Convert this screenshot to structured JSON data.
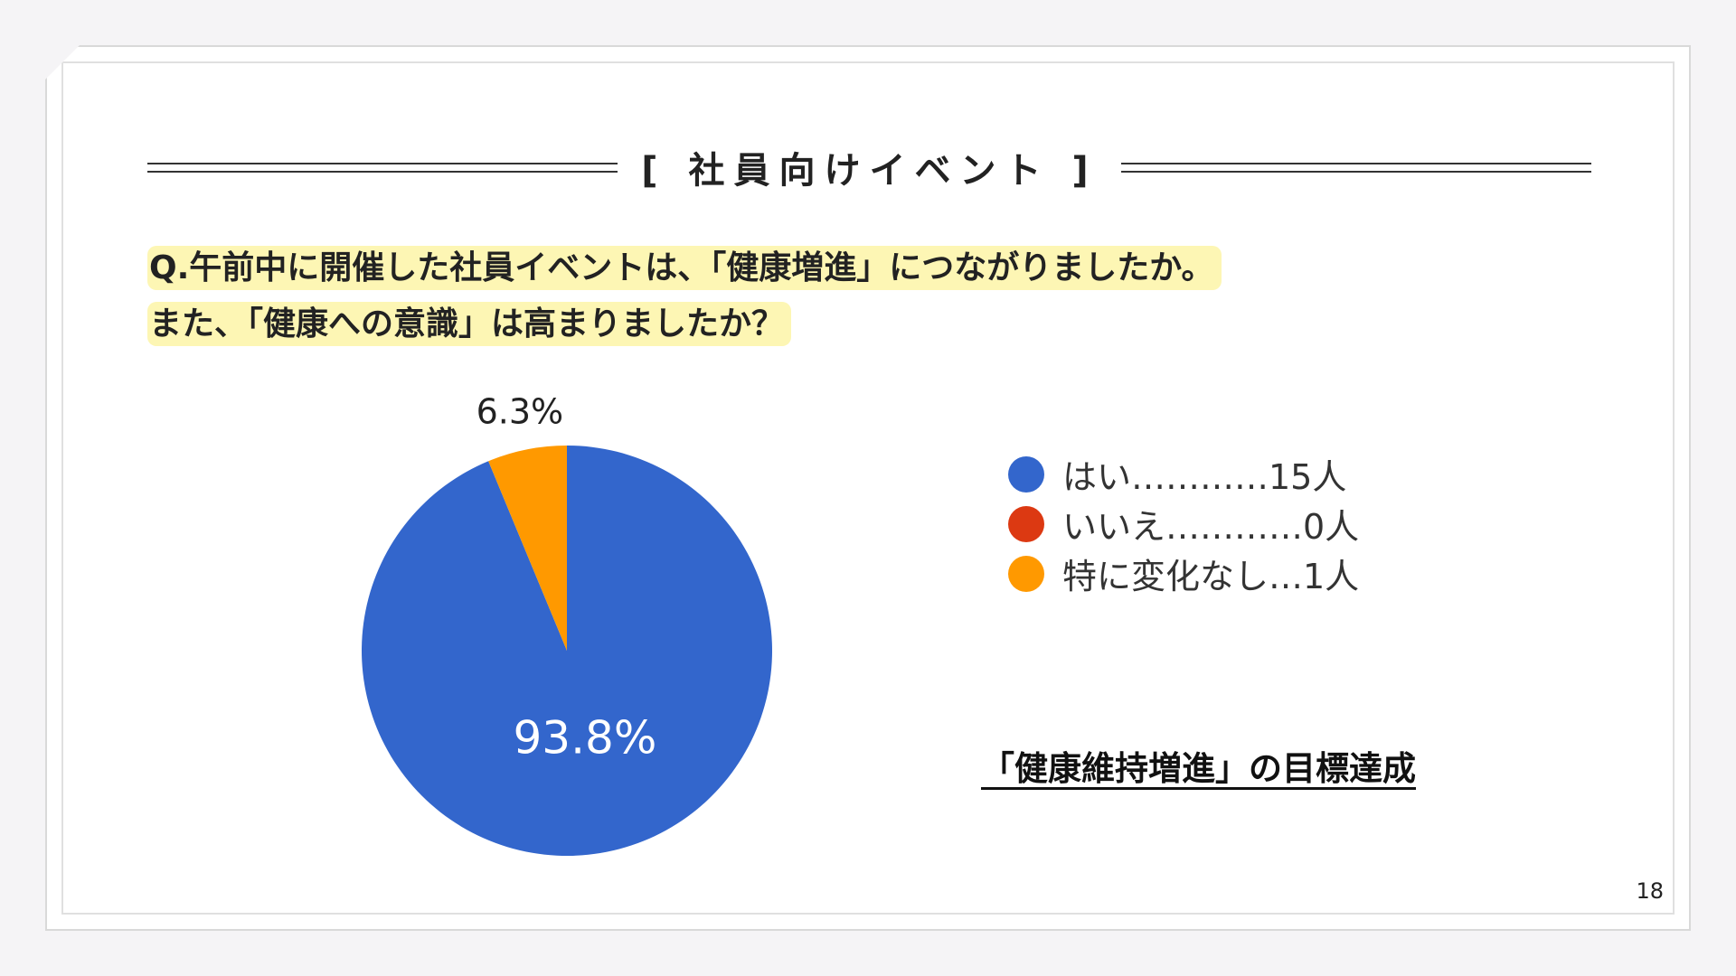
{
  "slide": {
    "title": "[ 社員向けイベント ]",
    "question_line1": "Q.午前中に開催した社員イベントは、「健康増進」につながりましたか。",
    "question_line2": "また、「健康への意識」は高まりましたか？",
    "conclusion": "「健康維持増進」の目標達成",
    "page_number": "18"
  },
  "legend": [
    {
      "label": "はい…………15人",
      "color": "#3366cc"
    },
    {
      "label": "いいえ…………0人",
      "color": "#dc3912"
    },
    {
      "label": "特に変化なし…1人",
      "color": "#ff9900"
    }
  ],
  "chart_data": {
    "type": "pie",
    "labels": [
      "はい",
      "いいえ",
      "特に変化なし"
    ],
    "values": [
      15,
      0,
      1
    ],
    "percent_labels": [
      "93.8%",
      "",
      "6.3%"
    ],
    "colors": [
      "#3366cc",
      "#dc3912",
      "#ff9900"
    ]
  }
}
